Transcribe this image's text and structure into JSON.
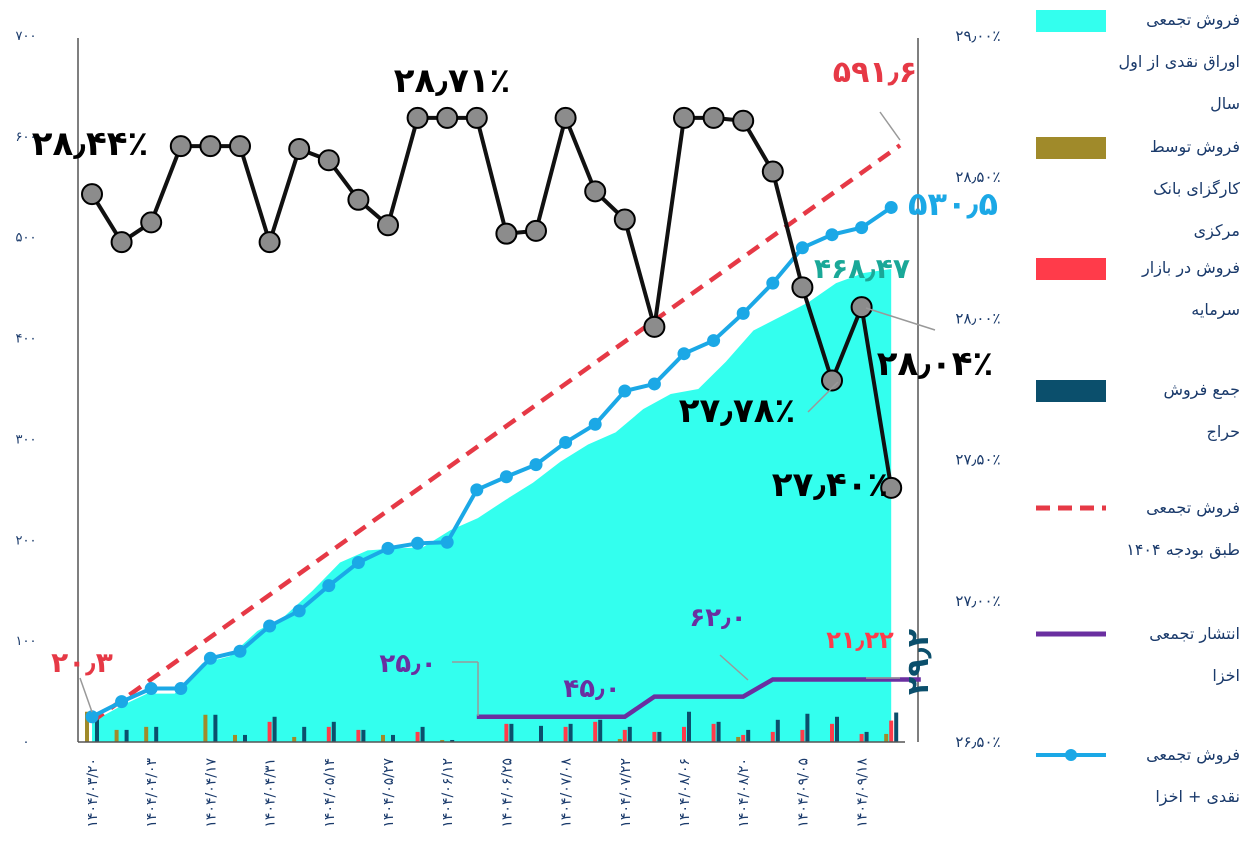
{
  "chart_data": {
    "type": "line",
    "colors": {
      "area": "#33ffee",
      "budget": "#e63946",
      "cash_plus_akhza": "#1ba8e6",
      "rate": "#111111",
      "rate_marker": "#8c8c8c",
      "bank_broker": "#a08a2a",
      "capital_market": "#ff3b4a",
      "auction": "#0b4f6c",
      "akhza": "#6a2fa0"
    },
    "x_labels": [
      "۱۴۰۴/۰۳/۲۰",
      "۱۴۰۴/۰۴/۰۳",
      "۱۴۰۴/۰۴/۱۷",
      "۱۴۰۴/۰۴/۳۱",
      "۱۴۰۴/۰۵/۱۴",
      "۱۴۰۴/۰۵/۲۷",
      "۱۴۰۴/۰۶/۱۲",
      "۱۴۰۴/۰۶/۲۵",
      "۱۴۰۴/۰۷/۰۸",
      "۱۴۰۴/۰۷/۲۲",
      "۱۴۰۴/۰۸/۰۶",
      "۱۴۰۴/۰۸/۲۰",
      "۱۴۰۴/۰۹/۰۵",
      "۱۴۰۴/۰۹/۱۸"
    ],
    "left_axis": {
      "ylim": [
        0,
        700
      ],
      "ticks": [
        "۰",
        "۱۰۰",
        "۲۰۰",
        "۳۰۰",
        "۴۰۰",
        "۵۰۰",
        "۶۰۰",
        "۷۰۰"
      ]
    },
    "right_axis": {
      "ylim": [
        26.5,
        29.0
      ],
      "ticks": [
        "۲۶٫۵۰٪",
        "۲۷٫۰۰٪",
        "۲۷٫۵۰٪",
        "۲۸٫۰۰٪",
        "۲۸٫۵۰٪",
        "۲۹٫۰۰٪"
      ]
    },
    "series": [
      {
        "name": "فروش تجمعی اوراق نقدی از اول سال",
        "type": "area",
        "values": [
          20,
          35,
          48,
          48,
          78,
          85,
          110,
          125,
          150,
          178,
          190,
          192,
          193,
          210,
          222,
          240,
          257,
          278,
          295,
          307,
          330,
          345,
          350,
          377,
          408,
          422,
          436,
          455,
          465,
          469
        ]
      },
      {
        "name": "فروش تجمعی طبق بودجه ۱۴۰۴",
        "type": "dashed-line",
        "start": 20.3,
        "end": 591.6
      },
      {
        "name": "فروش تجمعی نقدی + اخزا",
        "type": "line",
        "values": [
          25,
          40,
          53,
          53,
          83,
          90,
          115,
          130,
          155,
          178,
          192,
          197,
          198,
          250,
          263,
          275,
          297,
          315,
          348,
          355,
          385,
          398,
          425,
          455,
          490,
          503,
          510,
          530
        ]
      },
      {
        "name": "انتشار تجمعی اخزا",
        "type": "step-line",
        "x_range": [
          13,
          28
        ],
        "values": [
          25,
          25,
          25,
          25,
          25,
          25,
          45,
          45,
          45,
          45,
          62,
          62,
          62,
          62,
          62,
          62
        ]
      },
      {
        "name": "نرخ",
        "type": "line-right-axis",
        "values": [
          28.44,
          28.27,
          28.34,
          28.61,
          28.61,
          28.61,
          28.27,
          28.6,
          28.56,
          28.42,
          28.33,
          28.71,
          28.71,
          28.71,
          28.3,
          28.31,
          28.71,
          28.45,
          28.35,
          27.97,
          28.71,
          28.71,
          28.7,
          28.52,
          28.11,
          27.78,
          28.04,
          27.4
        ]
      },
      {
        "name": "فروش توسط کارگزای بانک مرکزی",
        "type": "bar",
        "values": [
          30,
          12,
          15,
          0,
          27,
          7,
          0,
          5,
          0,
          0,
          7,
          0,
          2,
          0,
          0,
          0,
          0,
          0,
          3,
          0,
          0,
          0,
          5,
          0,
          0,
          0,
          0,
          8
        ]
      },
      {
        "name": "فروش در بازار سرمایه",
        "type": "bar",
        "values": [
          0,
          0,
          0,
          0,
          0,
          0,
          20,
          0,
          15,
          12,
          0,
          10,
          0,
          0,
          18,
          0,
          15,
          20,
          12,
          10,
          15,
          18,
          7,
          10,
          12,
          18,
          8,
          21.22
        ]
      },
      {
        "name": "جمع فروش حراج",
        "type": "bar",
        "values": [
          28,
          12,
          15,
          0,
          27,
          7,
          25,
          15,
          20,
          12,
          7,
          15,
          2,
          0,
          18,
          16,
          18,
          22,
          15,
          10,
          30,
          20,
          12,
          22,
          28,
          25,
          10,
          29.2
        ]
      }
    ],
    "annotations": [
      "۲۰٫۳",
      "۵۹۱٫۶",
      "۵۳۰٫۵",
      "۴۶۸٫۴۷",
      "۲۸٫۴۴٪",
      "۲۸٫۷۱٪",
      "۲۸٫۰۴٪",
      "۲۷٫۷۸٪",
      "۲۷٫۴۰٪",
      "۲۵٫۰",
      "۴۵٫۰",
      "۶۲٫۰",
      "۲۱٫۲۲",
      "۲۹٫۲"
    ],
    "legend": [
      {
        "lines": [
          "فروش تجمعی",
          "اوراق نقدی از اول",
          "سال"
        ],
        "symbol": "rect",
        "color": "#33ffee"
      },
      {
        "lines": [
          "فروش توسط",
          "کارگزای بانک",
          "مرکزی"
        ],
        "symbol": "rect",
        "color": "#a08a2a"
      },
      {
        "lines": [
          "فروش در بازار",
          "سرمایه"
        ],
        "symbol": "rect",
        "color": "#ff3b4a"
      },
      {
        "lines": [
          "جمع فروش",
          "حراج"
        ],
        "symbol": "rect",
        "color": "#0b4f6c"
      },
      {
        "lines": [
          "فروش تجمعی",
          "طبق بودجه ۱۴۰۴"
        ],
        "symbol": "dash",
        "color": "#e63946"
      },
      {
        "lines": [
          "انتشار تجمعی",
          "اخزا"
        ],
        "symbol": "line",
        "color": "#6a2fa0"
      },
      {
        "lines": [
          "فروش تجمعی",
          "نقدی + اخزا"
        ],
        "symbol": "marker-line",
        "color": "#1ba8e6"
      }
    ],
    "legend_position": "right",
    "grid": false
  }
}
